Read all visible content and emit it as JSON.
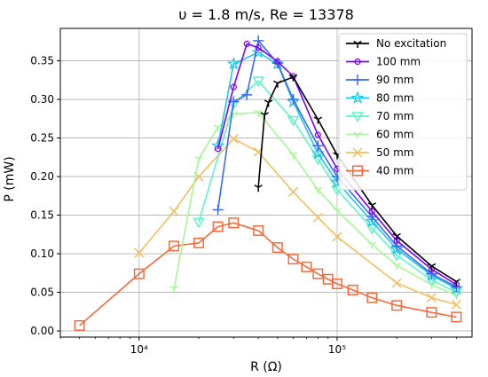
{
  "chart_data": {
    "type": "line",
    "title": "υ = 1.8 m/s, Re = 13378",
    "xlabel": "R (Ω)",
    "ylabel": "P (mW)",
    "xscale": "log",
    "xlim": [
      4000,
      480000
    ],
    "ylim": [
      -0.008,
      0.392
    ],
    "xticks": [
      10000,
      100000
    ],
    "xtick_labels": [
      "10⁴",
      "10⁵"
    ],
    "yticks": [
      0.0,
      0.05,
      0.1,
      0.15,
      0.2,
      0.25,
      0.3,
      0.35
    ],
    "ytick_labels": [
      "0.00",
      "0.05",
      "0.10",
      "0.15",
      "0.20",
      "0.25",
      "0.30",
      "0.35"
    ],
    "grid": true,
    "legend_position": "top-right",
    "series": [
      {
        "name": "No excitation",
        "color": "#000000",
        "marker": "tri_down",
        "x": [
          40000,
          43000,
          45000,
          50000,
          60000,
          80000,
          100000,
          150000,
          200000,
          300000,
          400000
        ],
        "y": [
          0.186,
          0.28,
          0.296,
          0.321,
          0.329,
          0.274,
          0.228,
          0.163,
          0.123,
          0.084,
          0.064
        ]
      },
      {
        "name": "100 mm",
        "color": "#8000ff",
        "marker": "circle",
        "x": [
          25000,
          30000,
          35000,
          40000,
          50000,
          60000,
          80000,
          100000,
          150000,
          200000,
          300000,
          400000
        ],
        "y": [
          0.236,
          0.316,
          0.372,
          0.367,
          0.349,
          0.33,
          0.254,
          0.21,
          0.155,
          0.117,
          0.08,
          0.06
        ]
      },
      {
        "name": "90 mm",
        "color": "#3a6af5",
        "marker": "plus",
        "x": [
          25000,
          30000,
          35000,
          40000,
          50000,
          60000,
          80000,
          100000,
          150000,
          200000,
          300000,
          400000
        ],
        "y": [
          0.157,
          0.297,
          0.306,
          0.376,
          0.347,
          0.3,
          0.24,
          0.2,
          0.148,
          0.11,
          0.074,
          0.057
        ]
      },
      {
        "name": "80 mm",
        "color": "#1cc6e8",
        "marker": "star",
        "x": [
          25000,
          30000,
          40000,
          50000,
          60000,
          80000,
          100000,
          150000,
          200000,
          300000,
          400000
        ],
        "y": [
          0.24,
          0.346,
          0.361,
          0.346,
          0.297,
          0.23,
          0.193,
          0.142,
          0.106,
          0.072,
          0.055
        ]
      },
      {
        "name": "70 mm",
        "color": "#5cf4c8",
        "marker": "triangle_down",
        "x": [
          20000,
          30000,
          40000,
          60000,
          80000,
          100000,
          150000,
          200000,
          300000,
          400000
        ],
        "y": [
          0.141,
          0.294,
          0.324,
          0.273,
          0.223,
          0.183,
          0.133,
          0.098,
          0.066,
          0.05
        ]
      },
      {
        "name": "60 mm",
        "color": "#a4f896",
        "marker": "tri_down",
        "x": [
          15000,
          20000,
          25000,
          30000,
          40000,
          60000,
          80000,
          100000,
          150000,
          200000,
          300000,
          400000
        ],
        "y": [
          0.055,
          0.223,
          0.264,
          0.281,
          0.283,
          0.228,
          0.183,
          0.156,
          0.112,
          0.085,
          0.06,
          0.046
        ]
      },
      {
        "name": "50 mm",
        "color": "#f0c060",
        "marker": "x",
        "x": [
          10000,
          15000,
          20000,
          30000,
          40000,
          60000,
          80000,
          100000,
          200000,
          300000,
          400000
        ],
        "y": [
          0.101,
          0.155,
          0.2,
          0.249,
          0.232,
          0.18,
          0.147,
          0.122,
          0.062,
          0.043,
          0.034
        ]
      },
      {
        "name": "40 mm",
        "color": "#f7693a",
        "marker": "square",
        "x": [
          5000,
          10000,
          15000,
          20000,
          25000,
          30000,
          40000,
          50000,
          60000,
          70000,
          80000,
          90000,
          100000,
          120000,
          150000,
          200000,
          300000,
          400000
        ],
        "y": [
          0.007,
          0.074,
          0.11,
          0.114,
          0.135,
          0.14,
          0.13,
          0.108,
          0.093,
          0.083,
          0.074,
          0.067,
          0.061,
          0.053,
          0.043,
          0.033,
          0.024,
          0.018
        ]
      }
    ]
  }
}
